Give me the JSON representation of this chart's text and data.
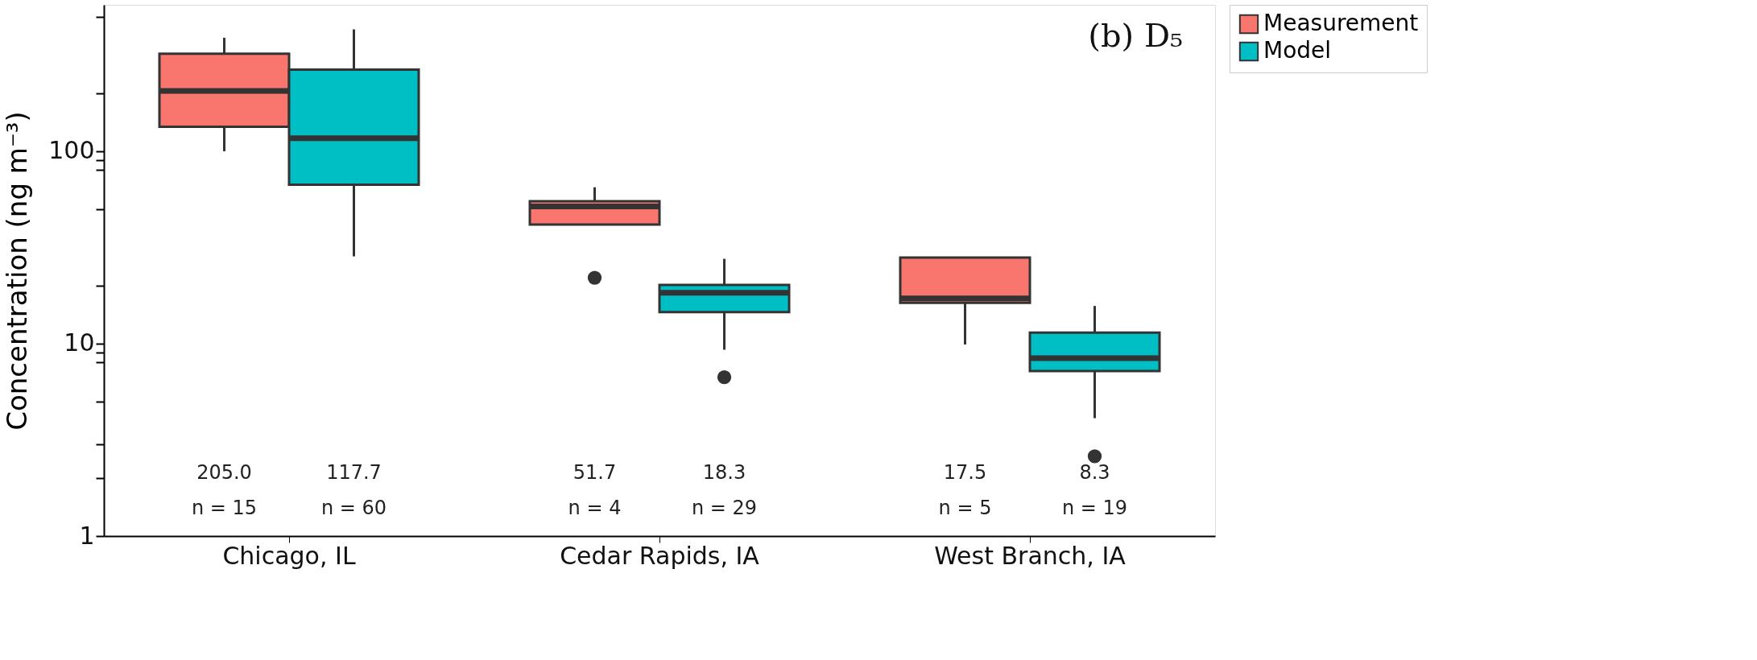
{
  "chart_data": {
    "type": "box",
    "title": "(b) D₅",
    "ylabel": "Concentration (ng m⁻³)",
    "categories": [
      "Chicago, IL",
      "Cedar Rapids, IA",
      "West Branch, IA"
    ],
    "log": true,
    "ylim": [
      1,
      577
    ],
    "yticks": [
      1,
      {
        "value": 2,
        "label": null
      },
      {
        "value": 3,
        "label": null
      },
      {
        "value": 5,
        "label": null
      },
      {
        "value": 8,
        "label": null
      },
      {
        "value": 9,
        "label": null
      },
      10,
      {
        "value": 20,
        "label": null
      },
      {
        "value": 50,
        "label": null
      },
      {
        "value": 80,
        "label": null
      },
      {
        "value": 90,
        "label": null
      },
      100,
      {
        "value": 200,
        "label": null
      },
      {
        "value": 500,
        "label": null
      }
    ],
    "grid": false,
    "legend": "right",
    "series": [
      {
        "name": "Measurement",
        "color": "#f8766d",
        "boxes": [
          {
            "low": 100,
            "q1": 134,
            "median": 206,
            "q3": 321,
            "high": 389
          },
          {
            "low": 41.6,
            "q1": 41.6,
            "median": 51.7,
            "q3": 55,
            "high": 65,
            "outliers": [
              22
            ]
          },
          {
            "low": 9.9,
            "q1": 16.3,
            "median": 17.2,
            "q3": 28,
            "high": 28
          }
        ]
      },
      {
        "name": "Model",
        "color": "#00bfc4",
        "boxes": [
          {
            "low": 28.4,
            "q1": 67,
            "median": 117,
            "q3": 266,
            "high": 430
          },
          {
            "low": 9.3,
            "q1": 14.6,
            "median": 18.4,
            "q3": 20.2,
            "high": 27.6,
            "outliers": [
              6.7
            ]
          },
          {
            "low": 4.1,
            "q1": 7.2,
            "median": 8.4,
            "q3": 11.4,
            "high": 15.7,
            "outliers": [
              2.6
            ]
          }
        ]
      }
    ],
    "annotations": [
      "205.0",
      "n = 15",
      "117.7",
      "n = 60",
      "51.7",
      "n = 4",
      "18.3",
      "n = 29",
      "17.5",
      "n = 5",
      "8.3",
      "n = 19"
    ]
  }
}
